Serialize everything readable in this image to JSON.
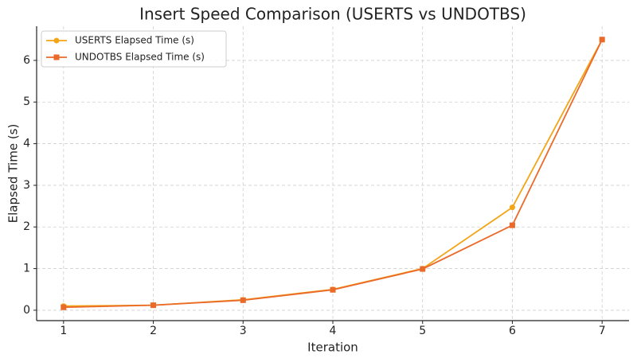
{
  "chart_data": {
    "type": "line",
    "title": "Insert Speed Comparison (USERTS vs UNDOTBS)",
    "x_label": "Iteration",
    "y_label": "Elapsed Time (s)",
    "x": [
      1,
      2,
      3,
      4,
      5,
      6,
      7
    ],
    "series": [
      {
        "name": "USERTS Elapsed Time (s)",
        "color": "#f2a516",
        "marker": "circle",
        "values": [
          0.1,
          0.12,
          0.25,
          0.5,
          1.0,
          2.47,
          6.5
        ]
      },
      {
        "name": "UNDOTBS Elapsed Time (s)",
        "color": "#ea6a2a",
        "marker": "square",
        "values": [
          0.07,
          0.12,
          0.24,
          0.49,
          0.99,
          2.04,
          6.5
        ]
      }
    ],
    "xlim": [
      0.7,
      7.3
    ],
    "ylim": [
      -0.25,
      6.82
    ],
    "xticks": [
      1,
      2,
      3,
      4,
      5,
      6,
      7
    ],
    "yticks": [
      0,
      1,
      2,
      3,
      4,
      5,
      6
    ],
    "grid": true,
    "legend": "upper left"
  }
}
